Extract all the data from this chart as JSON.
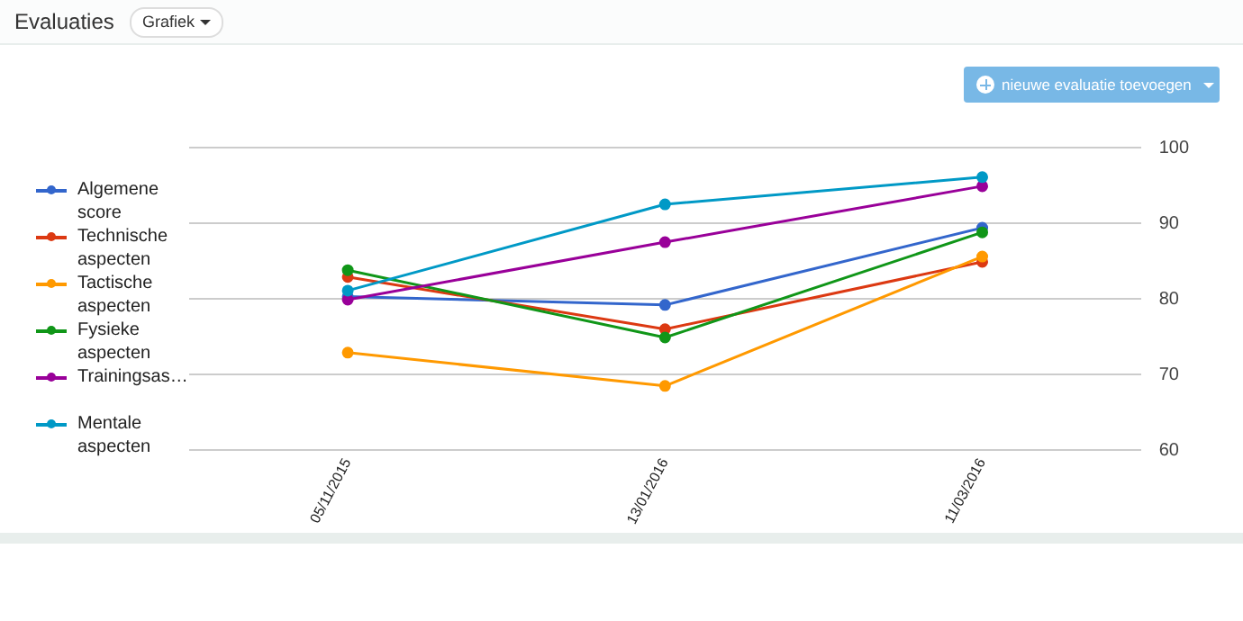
{
  "chart_data": {
    "type": "line",
    "title": "Evaluaties",
    "annotations": [
      "Grafiek",
      "nieuwe evaluatie toevoegen"
    ],
    "categories": [
      "05/11/2015",
      "13/01/2016",
      "11/03/2016"
    ],
    "series": [
      {
        "name": "Algemene score",
        "color": "#3366cc",
        "values": [
          80.3,
          79.2,
          89.4
        ]
      },
      {
        "name": "Technische aspecten",
        "color": "#dc3912",
        "values": [
          82.9,
          76.0,
          84.9
        ]
      },
      {
        "name": "Tactische aspecten",
        "color": "#ff9900",
        "values": [
          72.9,
          68.5,
          85.6
        ]
      },
      {
        "name": "Fysieke aspecten",
        "color": "#109618",
        "values": [
          83.8,
          74.9,
          88.8
        ]
      },
      {
        "name": "Trainingsas…",
        "color": "#990099",
        "values": [
          79.9,
          87.5,
          94.9
        ]
      },
      {
        "name": "Mentale aspecten",
        "color": "#0099c6",
        "values": [
          81.1,
          92.5,
          96.1
        ]
      }
    ],
    "ylim": [
      60,
      100
    ],
    "yticks": [
      60,
      70,
      80,
      90,
      100
    ],
    "grid": "y",
    "legend": "left",
    "marker": "circle",
    "line_style": "solid"
  }
}
